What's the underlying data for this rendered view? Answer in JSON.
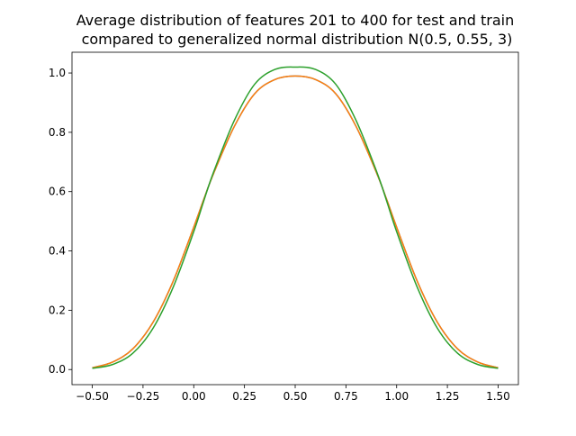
{
  "chart_data": {
    "type": "line",
    "title": "Average distribution of features 201 to 400 for test and train",
    "subtitle": "compared to generalized normal distribution N(0.5, 0.55, 3)",
    "xlabel": "",
    "ylabel": "",
    "xlim": [
      -0.6,
      1.6
    ],
    "ylim": [
      -0.051,
      1.07
    ],
    "grid": false,
    "x_ticks": [
      -0.5,
      -0.25,
      0.0,
      0.25,
      0.5,
      0.75,
      1.0,
      1.25,
      1.5
    ],
    "x_tick_labels": [
      "−0.50",
      "−0.25",
      "0.00",
      "0.25",
      "0.50",
      "0.75",
      "1.00",
      "1.25",
      "1.50"
    ],
    "y_ticks": [
      0.0,
      0.2,
      0.4,
      0.6,
      0.8,
      1.0
    ],
    "y_tick_labels": [
      "0.0",
      "0.2",
      "0.4",
      "0.6",
      "0.8",
      "1.0"
    ],
    "x": [
      -0.5,
      -0.4,
      -0.3,
      -0.2,
      -0.1,
      0.0,
      0.05,
      0.1,
      0.2,
      0.3,
      0.4,
      0.5,
      0.6,
      0.7,
      0.8,
      0.9,
      0.95,
      1.0,
      1.1,
      1.2,
      1.3,
      1.4,
      1.5
    ],
    "series": [
      {
        "color": "#1f77b4",
        "values": [
          0.006,
          0.025,
          0.07,
          0.16,
          0.3,
          0.48,
          0.575,
          0.665,
          0.82,
          0.93,
          0.978,
          0.99,
          0.978,
          0.93,
          0.82,
          0.665,
          0.575,
          0.48,
          0.3,
          0.16,
          0.07,
          0.025,
          0.006
        ]
      },
      {
        "color": "#ff7f0e",
        "values": [
          0.006,
          0.025,
          0.07,
          0.16,
          0.3,
          0.48,
          0.575,
          0.665,
          0.82,
          0.93,
          0.978,
          0.99,
          0.978,
          0.93,
          0.82,
          0.665,
          0.575,
          0.48,
          0.3,
          0.16,
          0.07,
          0.025,
          0.006
        ]
      },
      {
        "color": "#2ca02c",
        "values": [
          0.004,
          0.017,
          0.055,
          0.14,
          0.28,
          0.465,
          0.57,
          0.67,
          0.84,
          0.962,
          1.012,
          1.02,
          1.012,
          0.962,
          0.84,
          0.67,
          0.57,
          0.465,
          0.28,
          0.14,
          0.055,
          0.017,
          0.004
        ]
      }
    ]
  }
}
